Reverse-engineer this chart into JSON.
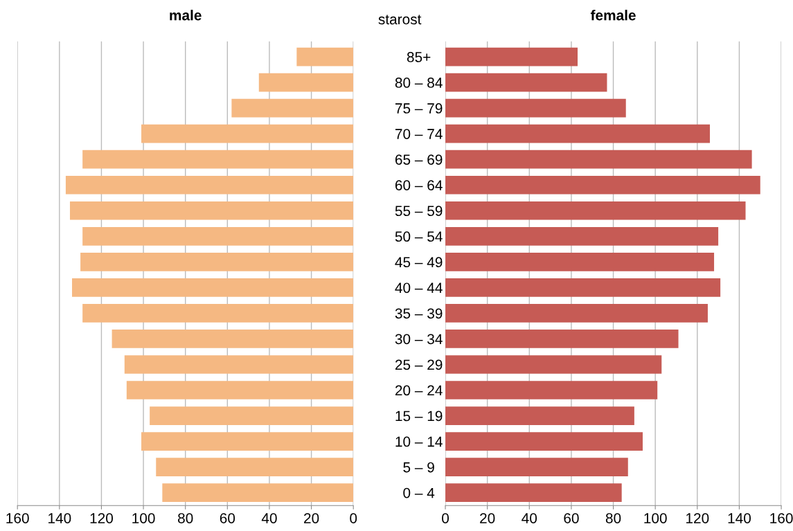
{
  "chart_data": [
    {
      "type": "bar",
      "orientation": "horizontal",
      "title": "male",
      "ylabel": "starost",
      "categories": [
        "85+",
        "80 – 84",
        "75 – 79",
        "70 – 74",
        "65 – 69",
        "60 – 64",
        "55 – 59",
        "50 – 54",
        "45 – 49",
        "40 – 44",
        "35 – 39",
        "30 – 34",
        "25 – 29",
        "20 – 24",
        "15 – 19",
        "10 – 14",
        "5 – 9",
        "0 – 4"
      ],
      "values": [
        27,
        45,
        58,
        101,
        129,
        137,
        135,
        129,
        130,
        134,
        129,
        115,
        109,
        108,
        97,
        101,
        94,
        91
      ],
      "color": "#f5b882",
      "xlim": [
        160,
        0
      ],
      "xticks": [
        160,
        140,
        120,
        100,
        80,
        60,
        40,
        20,
        0
      ],
      "grid": "x",
      "legend": false
    },
    {
      "type": "bar",
      "orientation": "horizontal",
      "title": "female",
      "categories": [
        null,
        null,
        null,
        null,
        null,
        null,
        null,
        null,
        null,
        null,
        null,
        null,
        null,
        null,
        null,
        null,
        null,
        null
      ],
      "values": [
        63,
        77,
        86,
        126,
        146,
        150,
        143,
        130,
        128,
        131,
        125,
        111,
        103,
        101,
        90,
        94,
        87,
        84
      ],
      "color": "#c65b55",
      "xlim": [
        0,
        160
      ],
      "xticks": [
        0,
        20,
        40,
        60,
        80,
        100,
        120,
        140,
        160
      ],
      "grid": "x",
      "legend": false
    }
  ]
}
